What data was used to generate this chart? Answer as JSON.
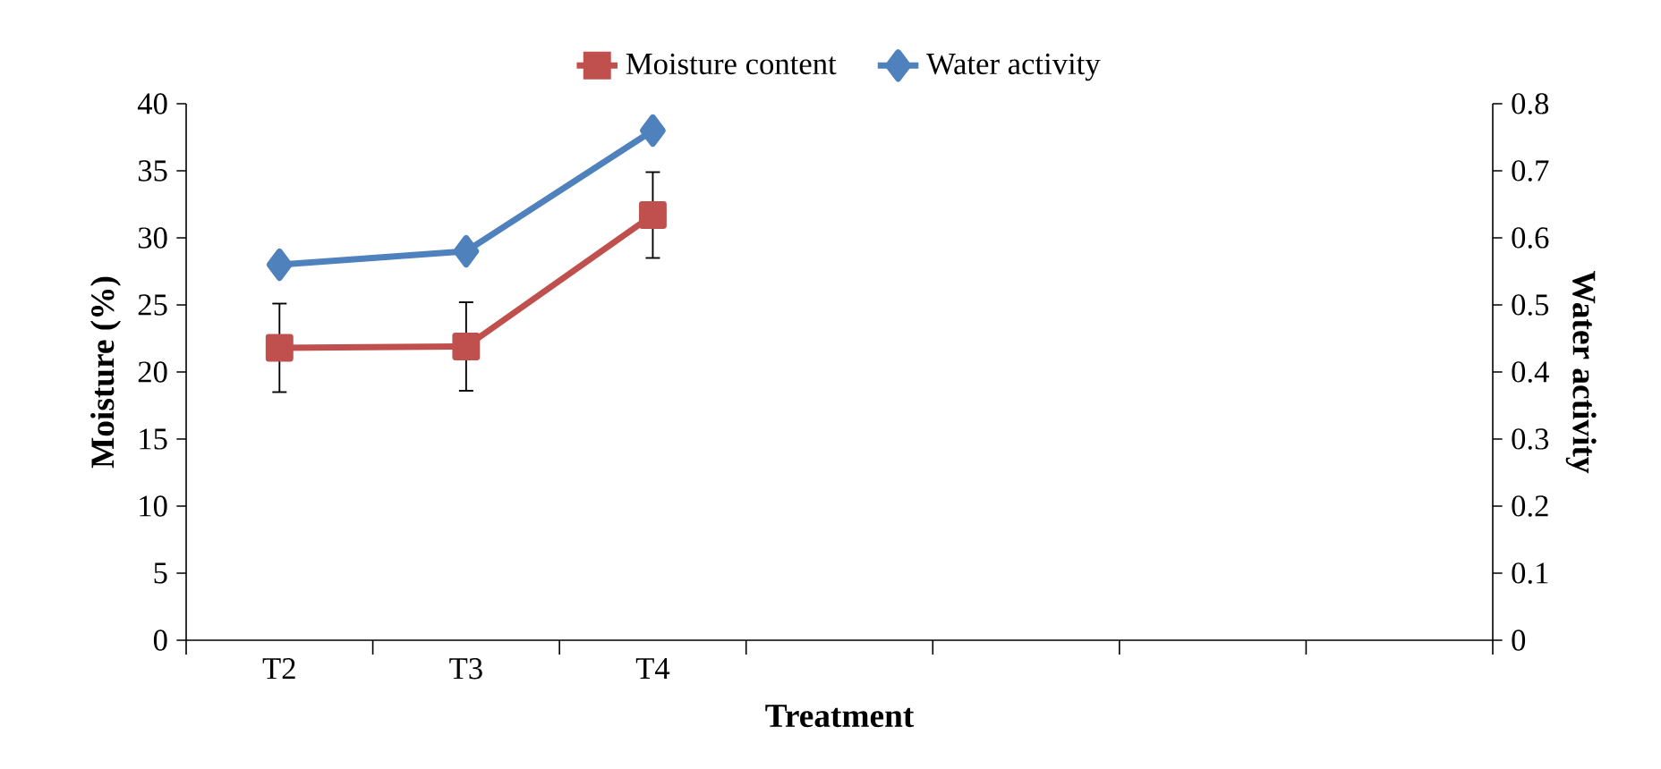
{
  "chart_data": {
    "type": "line",
    "xlabel": "Treatment",
    "ylabel": "Moisture (%)",
    "y2label": "Water activity",
    "categories": [
      "T2",
      "T3",
      "T4",
      null,
      null,
      null,
      null
    ],
    "series": [
      {
        "name": "Moisture content",
        "color": "#c0504d",
        "marker": "square",
        "values": [
          21.8,
          21.9,
          31.7,
          null,
          null,
          null,
          null
        ],
        "errors": [
          3.3,
          3.3,
          3.2,
          null,
          null,
          null,
          null
        ]
      },
      {
        "name": "Water activity",
        "color": "#4f81bd",
        "marker": "diamond",
        "axis": "y2",
        "values": [
          0.56,
          0.58,
          0.76,
          null,
          null,
          null,
          null
        ]
      }
    ],
    "ylim": [
      0,
      40
    ],
    "yticks": [
      0,
      5,
      10,
      15,
      20,
      25,
      30,
      35,
      40
    ],
    "y2lim": [
      0,
      0.8
    ],
    "y2ticks": [
      0,
      0.1,
      0.2,
      0.3,
      0.4,
      0.5,
      0.6,
      0.7,
      0.8
    ],
    "legend": "top",
    "grid": false
  }
}
